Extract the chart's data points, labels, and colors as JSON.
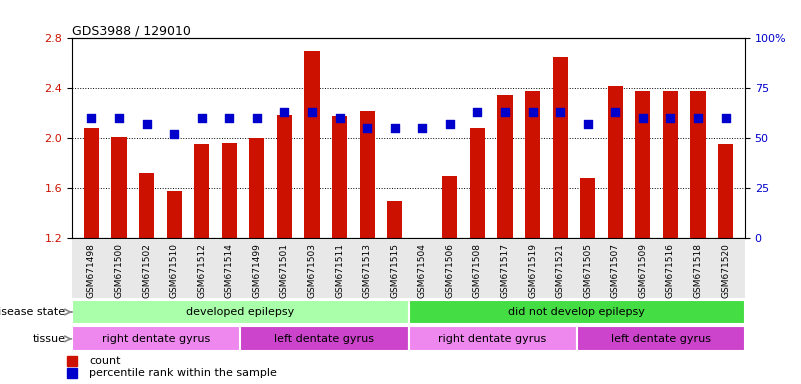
{
  "title": "GDS3988 / 129010",
  "samples": [
    "GSM671498",
    "GSM671500",
    "GSM671502",
    "GSM671510",
    "GSM671512",
    "GSM671514",
    "GSM671499",
    "GSM671501",
    "GSM671503",
    "GSM671511",
    "GSM671513",
    "GSM671515",
    "GSM671504",
    "GSM671506",
    "GSM671508",
    "GSM671517",
    "GSM671519",
    "GSM671521",
    "GSM671505",
    "GSM671507",
    "GSM671509",
    "GSM671516",
    "GSM671518",
    "GSM671520"
  ],
  "counts": [
    2.08,
    2.01,
    1.72,
    1.58,
    1.95,
    1.96,
    2.0,
    2.19,
    2.7,
    2.18,
    2.22,
    1.5,
    1.2,
    1.7,
    2.08,
    2.35,
    2.38,
    2.65,
    1.68,
    2.42,
    2.38,
    2.38,
    2.38,
    1.95
  ],
  "percentiles": [
    60,
    60,
    57,
    52,
    60,
    60,
    60,
    63,
    63,
    60,
    55,
    55,
    55,
    57,
    63,
    63,
    63,
    63,
    57,
    63,
    60,
    60,
    60,
    60
  ],
  "ylim_left": [
    1.2,
    2.8
  ],
  "ylim_right": [
    0,
    100
  ],
  "yticks_left": [
    1.2,
    1.6,
    2.0,
    2.4,
    2.8
  ],
  "yticks_right": [
    0,
    25,
    50,
    75,
    100
  ],
  "bar_color": "#CC1100",
  "dot_color": "#0000CC",
  "disease_state_groups": [
    {
      "label": "developed epilepsy",
      "start": 0,
      "end": 12,
      "color": "#AAFFAA"
    },
    {
      "label": "did not develop epilepsy",
      "start": 12,
      "end": 24,
      "color": "#44DD44"
    }
  ],
  "tissue_groups": [
    {
      "label": "right dentate gyrus",
      "start": 0,
      "end": 6,
      "color": "#EE88EE"
    },
    {
      "label": "left dentate gyrus",
      "start": 6,
      "end": 12,
      "color": "#CC44CC"
    },
    {
      "label": "right dentate gyrus",
      "start": 12,
      "end": 18,
      "color": "#EE88EE"
    },
    {
      "label": "left dentate gyrus",
      "start": 18,
      "end": 24,
      "color": "#CC44CC"
    }
  ],
  "legend_items": [
    {
      "label": "count",
      "color": "#CC1100"
    },
    {
      "label": "percentile rank within the sample",
      "color": "#0000CC"
    }
  ],
  "disease_state_label": "disease state",
  "tissue_label": "tissue",
  "bg_color": "#E8E8E8"
}
